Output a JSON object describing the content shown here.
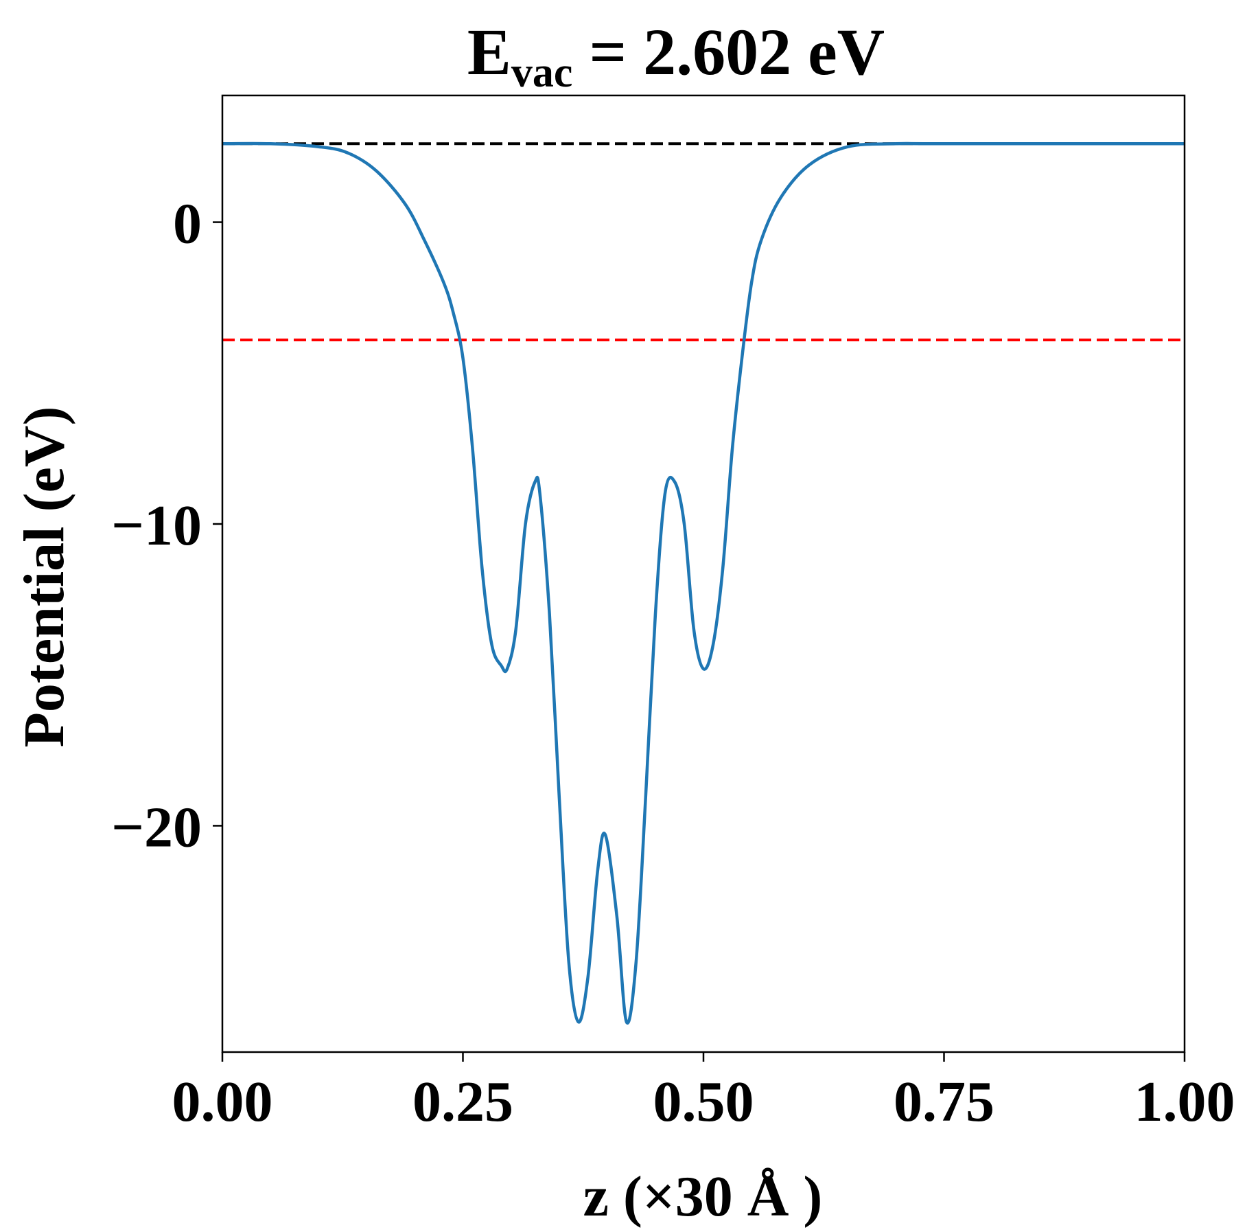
{
  "chart_data": {
    "type": "line",
    "title_main": "E",
    "title_sub": "vac",
    "title_rest": " = 2.602 eV",
    "xlabel": "z (×30 Å )",
    "ylabel": "Potential (eV)",
    "xlim": [
      0,
      1
    ],
    "ylim": [
      -27.5,
      4.2
    ],
    "x_ticks": [
      0,
      0.25,
      0.5,
      0.75,
      1.0
    ],
    "x_tick_labels": [
      "0.00",
      "0.25",
      "0.50",
      "0.75",
      "1.00"
    ],
    "y_ticks": [
      0,
      -10,
      -20
    ],
    "y_tick_labels": [
      "0",
      "−10",
      "−20"
    ],
    "grid": false,
    "reference_lines": [
      {
        "y": 2.602,
        "color": "#000000",
        "style": "dashed"
      },
      {
        "y": -3.9,
        "color": "#ff0000",
        "style": "dashed"
      }
    ],
    "series": [
      {
        "color": "#1f77b4",
        "x": [
          0.0,
          0.05,
          0.1,
          0.13,
          0.16,
          0.19,
          0.21,
          0.23,
          0.24,
          0.25,
          0.26,
          0.27,
          0.28,
          0.29,
          0.296,
          0.305,
          0.315,
          0.325,
          0.33,
          0.34,
          0.35,
          0.36,
          0.37,
          0.38,
          0.39,
          0.398,
          0.41,
          0.42,
          0.43,
          0.44,
          0.45,
          0.46,
          0.47,
          0.48,
          0.49,
          0.5,
          0.51,
          0.52,
          0.53,
          0.54,
          0.55,
          0.56,
          0.58,
          0.61,
          0.65,
          0.7,
          0.75,
          1.0
        ],
        "y": [
          2.6,
          2.6,
          2.5,
          2.3,
          1.7,
          0.6,
          -0.6,
          -2.0,
          -3.0,
          -4.5,
          -7.5,
          -11.5,
          -14.0,
          -14.7,
          -14.8,
          -13.5,
          -10.0,
          -8.6,
          -9.0,
          -13.0,
          -19.0,
          -24.5,
          -26.5,
          -25.0,
          -21.5,
          -20.3,
          -23.0,
          -26.5,
          -24.5,
          -19.0,
          -13.0,
          -9.0,
          -8.6,
          -10.0,
          -13.5,
          -14.8,
          -14.0,
          -11.5,
          -7.5,
          -4.5,
          -2.0,
          -0.6,
          0.8,
          1.9,
          2.5,
          2.6,
          2.6,
          2.6
        ]
      }
    ]
  }
}
